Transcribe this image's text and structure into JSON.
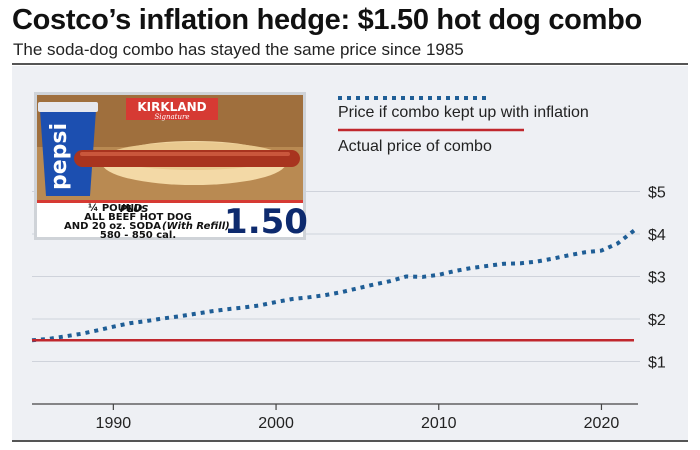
{
  "title": "Costco’s inflation hedge: $1.50 hot dog combo",
  "subtitle": "The soda-dog combo has stayed the same price since 1985",
  "sign": {
    "brand": "KIRKLAND",
    "brand_sub": "Signature",
    "cup_text": "pepsi",
    "line1_a": "¼ POUND",
    "line1_b": "PLUS",
    "line2": "ALL BEEF HOT DOG",
    "line3": "AND 20 oz. SODA",
    "line3_note": "(With Refill)",
    "line4": "580 - 850 cal.",
    "price": "1.50"
  },
  "colors": {
    "inflation": "#1f5e96",
    "actual": "#c0272d",
    "panel": "#eef0f4"
  },
  "chart_data": {
    "type": "line",
    "x": [
      1985,
      1986,
      1987,
      1988,
      1989,
      1990,
      1991,
      1992,
      1993,
      1994,
      1995,
      1996,
      1997,
      1998,
      1999,
      2000,
      2001,
      2002,
      2003,
      2004,
      2005,
      2006,
      2007,
      2008,
      2009,
      2010,
      2011,
      2012,
      2013,
      2014,
      2015,
      2016,
      2017,
      2018,
      2019,
      2020,
      2021,
      2022
    ],
    "series": [
      {
        "name": "Price if combo kept up with inflation",
        "style": "dotted",
        "values": [
          1.5,
          1.53,
          1.59,
          1.65,
          1.73,
          1.82,
          1.9,
          1.95,
          2.01,
          2.06,
          2.12,
          2.18,
          2.23,
          2.27,
          2.32,
          2.4,
          2.47,
          2.51,
          2.56,
          2.63,
          2.72,
          2.81,
          2.89,
          3.0,
          2.99,
          3.04,
          3.13,
          3.2,
          3.25,
          3.3,
          3.31,
          3.35,
          3.42,
          3.5,
          3.57,
          3.61,
          3.78,
          4.08
        ]
      },
      {
        "name": "Actual price of combo",
        "style": "solid",
        "values": [
          1.5,
          1.5,
          1.5,
          1.5,
          1.5,
          1.5,
          1.5,
          1.5,
          1.5,
          1.5,
          1.5,
          1.5,
          1.5,
          1.5,
          1.5,
          1.5,
          1.5,
          1.5,
          1.5,
          1.5,
          1.5,
          1.5,
          1.5,
          1.5,
          1.5,
          1.5,
          1.5,
          1.5,
          1.5,
          1.5,
          1.5,
          1.5,
          1.5,
          1.5,
          1.5,
          1.5,
          1.5,
          1.5
        ]
      }
    ],
    "x_ticks": [
      "1990",
      "2000",
      "2010",
      "2020"
    ],
    "x_tick_values": [
      1990,
      2000,
      2010,
      2020
    ],
    "y_ticks": [
      "$1",
      "$2",
      "$3",
      "$4",
      "$5"
    ],
    "y_tick_values": [
      1,
      2,
      3,
      4,
      5
    ],
    "xlim": [
      1985,
      2022
    ],
    "ylim": [
      0,
      5.5
    ],
    "grid": "horizontal",
    "legend_position": "top-right",
    "xlabel": "",
    "ylabel": ""
  }
}
